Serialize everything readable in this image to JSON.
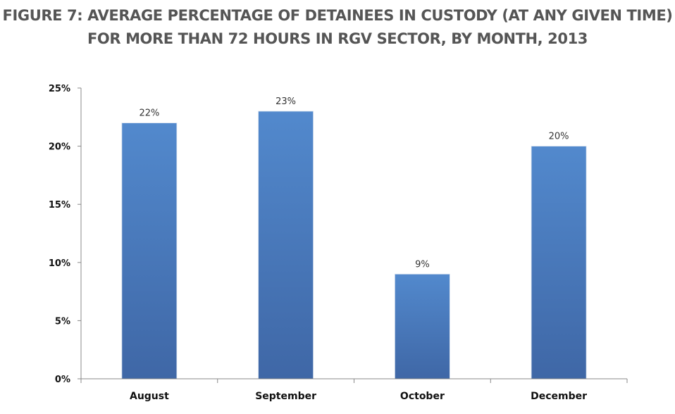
{
  "chart_data": {
    "type": "bar",
    "title_lines": [
      "FIGURE 7: AVERAGE PERCENTAGE OF DETAINEES IN CUSTODY (AT ANY GIVEN TIME)",
      "FOR MORE THAN 72 HOURS IN RGV SECTOR, BY MONTH, 2013"
    ],
    "categories": [
      "August",
      "September",
      "October",
      "December"
    ],
    "values": [
      22,
      23,
      9,
      20
    ],
    "data_labels": [
      "22%",
      "23%",
      "9%",
      "20%"
    ],
    "xlabel": "",
    "ylabel": "",
    "ylim": [
      0,
      25
    ],
    "yticks": [
      0,
      5,
      10,
      15,
      20,
      25
    ],
    "ytick_labels": [
      "0%",
      "5%",
      "10%",
      "15%",
      "20%",
      "25%"
    ],
    "grid": false,
    "legend": "none",
    "bar_color_top": "#5289cd",
    "bar_color_bottom": "#3f67a6"
  }
}
